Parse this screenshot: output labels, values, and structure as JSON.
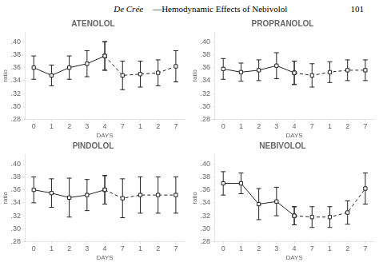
{
  "title": "De Crée",
  "subtitle": "—Hemodynamic Effects of Nebivolol",
  "annotations": [
    "101"
  ],
  "chart_data": [
    {
      "type": "line",
      "title": "ATENOLOL",
      "xlabel": "DAYS",
      "ylabel": "ratio",
      "categories": [
        "0",
        "1",
        "2",
        "3",
        "4",
        "7",
        "1",
        "2",
        "7"
      ],
      "series": [
        {
          "color": "#222222",
          "marker": "square",
          "line_style": "solid",
          "values": [
            0.36,
            0.348,
            0.36,
            0.366,
            0.378,
            null,
            null,
            null,
            null
          ],
          "errors": [
            0.018,
            0.016,
            0.018,
            0.02,
            0.022,
            null,
            null,
            null,
            null
          ]
        },
        {
          "color": "#222222",
          "marker": "square",
          "line_style": "dashed",
          "values": [
            null,
            null,
            null,
            null,
            0.378,
            0.348,
            0.35,
            0.352,
            0.362
          ],
          "errors": [
            null,
            null,
            null,
            null,
            0.022,
            0.022,
            0.02,
            0.02,
            0.024
          ]
        }
      ],
      "ylim": [
        0.28,
        0.415
      ],
      "yticks": [
        {
          "value": 0.28,
          "label": ".28"
        },
        {
          "value": 0.3,
          "label": ".30"
        },
        {
          "value": 0.32,
          "label": ".32"
        },
        {
          "value": 0.34,
          "label": ".34"
        },
        {
          "value": 0.36,
          "label": ".36"
        },
        {
          "value": 0.38,
          "label": ".38"
        },
        {
          "value": 0.4,
          "label": ".40"
        }
      ],
      "grid": false
    },
    {
      "type": "line",
      "title": "PROPRANOLOL",
      "xlabel": "DAYS",
      "ylabel": "ratio",
      "categories": [
        "0",
        "1",
        "2",
        "3",
        "4",
        "7",
        "1",
        "2",
        "7"
      ],
      "series": [
        {
          "color": "#222222",
          "marker": "square",
          "line_style": "solid",
          "values": [
            0.358,
            0.353,
            0.356,
            0.363,
            0.352,
            null,
            null,
            null,
            null
          ],
          "errors": [
            0.016,
            0.014,
            0.016,
            0.02,
            0.018,
            null,
            null,
            null,
            null
          ]
        },
        {
          "color": "#222222",
          "marker": "square",
          "line_style": "dashed",
          "values": [
            null,
            null,
            null,
            null,
            0.352,
            0.348,
            0.353,
            0.356,
            0.356
          ],
          "errors": [
            null,
            null,
            null,
            null,
            0.018,
            0.018,
            0.016,
            0.016,
            0.016
          ]
        }
      ],
      "ylim": [
        0.28,
        0.415
      ],
      "yticks": [
        {
          "value": 0.28,
          "label": ".28"
        },
        {
          "value": 0.3,
          "label": ".30"
        },
        {
          "value": 0.32,
          "label": ".32"
        },
        {
          "value": 0.34,
          "label": ".34"
        },
        {
          "value": 0.36,
          "label": ".36"
        },
        {
          "value": 0.38,
          "label": ".38"
        },
        {
          "value": 0.4,
          "label": ".40"
        }
      ],
      "grid": false
    },
    {
      "type": "line",
      "title": "PINDOLOL",
      "xlabel": "DAYS",
      "ylabel": "ratio",
      "categories": [
        "0",
        "1",
        "2",
        "3",
        "4",
        "7",
        "1",
        "2",
        "7"
      ],
      "series": [
        {
          "color": "#222222",
          "marker": "square",
          "line_style": "solid",
          "values": [
            0.36,
            0.355,
            0.348,
            0.352,
            0.36,
            null,
            null,
            null,
            null
          ],
          "errors": [
            0.02,
            0.022,
            0.03,
            0.024,
            0.022,
            null,
            null,
            null,
            null
          ]
        },
        {
          "color": "#222222",
          "marker": "square",
          "line_style": "dashed",
          "values": [
            null,
            null,
            null,
            null,
            0.36,
            0.347,
            0.352,
            0.352,
            0.352
          ],
          "errors": [
            null,
            null,
            null,
            null,
            0.022,
            0.03,
            0.028,
            0.028,
            0.028
          ]
        }
      ],
      "ylim": [
        0.28,
        0.415
      ],
      "yticks": [
        {
          "value": 0.28,
          "label": ".28"
        },
        {
          "value": 0.3,
          "label": ".30"
        },
        {
          "value": 0.32,
          "label": ".32"
        },
        {
          "value": 0.34,
          "label": ".34"
        },
        {
          "value": 0.36,
          "label": ".36"
        },
        {
          "value": 0.38,
          "label": ".38"
        },
        {
          "value": 0.4,
          "label": ".40"
        }
      ],
      "grid": false
    },
    {
      "type": "line",
      "title": "NEBIVOLOL",
      "xlabel": "DAYS",
      "ylabel": "ratio",
      "categories": [
        "0",
        "1",
        "2",
        "3",
        "4",
        "7",
        "1",
        "2",
        "7"
      ],
      "series": [
        {
          "color": "#222222",
          "marker": "square",
          "line_style": "solid",
          "values": [
            0.37,
            0.37,
            0.338,
            0.342,
            0.32,
            null,
            null,
            null,
            null
          ],
          "errors": [
            0.018,
            0.016,
            0.024,
            0.022,
            0.014,
            null,
            null,
            null,
            null
          ]
        },
        {
          "color": "#222222",
          "marker": "square",
          "line_style": "dashed",
          "values": [
            null,
            null,
            null,
            null,
            0.32,
            0.318,
            0.318,
            0.325,
            0.362
          ],
          "errors": [
            null,
            null,
            null,
            null,
            0.014,
            0.016,
            0.016,
            0.018,
            0.024
          ]
        }
      ],
      "ylim": [
        0.28,
        0.415
      ],
      "yticks": [
        {
          "value": 0.28,
          "label": ".28"
        },
        {
          "value": 0.3,
          "label": ".30"
        },
        {
          "value": 0.32,
          "label": ".32"
        },
        {
          "value": 0.34,
          "label": ".34"
        },
        {
          "value": 0.36,
          "label": ".36"
        },
        {
          "value": 0.38,
          "label": ".38"
        },
        {
          "value": 0.4,
          "label": ".40"
        }
      ],
      "grid": false
    }
  ]
}
